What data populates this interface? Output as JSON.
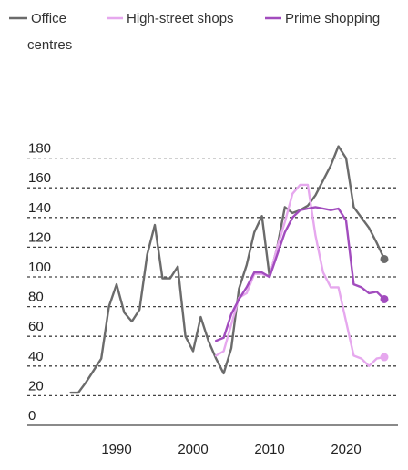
{
  "chart_data": {
    "type": "line",
    "title": "",
    "xlabel": "",
    "ylabel": "",
    "xlim": [
      1978,
      2028
    ],
    "ylim": [
      0,
      190
    ],
    "grid": true,
    "legend_position": "top-left",
    "x_ticks": [
      1990,
      2000,
      2010,
      2020
    ],
    "y_ticks": [
      0,
      20,
      40,
      60,
      80,
      100,
      120,
      140,
      160,
      180
    ],
    "series": [
      {
        "name": "Office",
        "color": "#6b6b6b",
        "end_marker": true,
        "points": [
          [
            1984,
            22
          ],
          [
            1985,
            22
          ],
          [
            1986,
            29
          ],
          [
            1987,
            37
          ],
          [
            1988,
            45
          ],
          [
            1989,
            80
          ],
          [
            1990,
            95
          ],
          [
            1991,
            76
          ],
          [
            1992,
            70
          ],
          [
            1993,
            78
          ],
          [
            1994,
            115
          ],
          [
            1995,
            135
          ],
          [
            1996,
            99
          ],
          [
            1997,
            99
          ],
          [
            1998,
            107
          ],
          [
            1999,
            60
          ],
          [
            2000,
            50
          ],
          [
            2001,
            73
          ],
          [
            2002,
            57
          ],
          [
            2003,
            45
          ],
          [
            2004,
            35
          ],
          [
            2005,
            52
          ],
          [
            2006,
            92
          ],
          [
            2007,
            108
          ],
          [
            2008,
            130
          ],
          [
            2009,
            141
          ],
          [
            2010,
            100
          ],
          [
            2011,
            120
          ],
          [
            2012,
            147
          ],
          [
            2013,
            143
          ],
          [
            2014,
            145
          ],
          [
            2015,
            148
          ],
          [
            2016,
            155
          ],
          [
            2017,
            165
          ],
          [
            2018,
            175
          ],
          [
            2019,
            188
          ],
          [
            2020,
            180
          ],
          [
            2021,
            147
          ],
          [
            2022,
            140
          ],
          [
            2023,
            133
          ],
          [
            2024,
            123
          ],
          [
            2025,
            112
          ]
        ]
      },
      {
        "name": "High-street shops",
        "color": "#e6a8ee",
        "end_marker": true,
        "points": [
          [
            2003,
            47
          ],
          [
            2004,
            50
          ],
          [
            2005,
            68
          ],
          [
            2006,
            86
          ],
          [
            2007,
            89
          ],
          [
            2008,
            102
          ],
          [
            2009,
            102
          ],
          [
            2010,
            100
          ],
          [
            2011,
            120
          ],
          [
            2012,
            137
          ],
          [
            2013,
            156
          ],
          [
            2014,
            162
          ],
          [
            2015,
            162
          ],
          [
            2016,
            128
          ],
          [
            2017,
            103
          ],
          [
            2018,
            93
          ],
          [
            2019,
            93
          ],
          [
            2020,
            70
          ],
          [
            2021,
            47
          ],
          [
            2022,
            45
          ],
          [
            2023,
            40
          ],
          [
            2024,
            45
          ],
          [
            2025,
            46
          ]
        ]
      },
      {
        "name": "Prime shopping centres",
        "color": "#a24cbe",
        "end_marker": true,
        "points": [
          [
            2003,
            57
          ],
          [
            2004,
            59
          ],
          [
            2005,
            75
          ],
          [
            2006,
            85
          ],
          [
            2007,
            93
          ],
          [
            2008,
            103
          ],
          [
            2009,
            103
          ],
          [
            2010,
            100
          ],
          [
            2011,
            115
          ],
          [
            2012,
            130
          ],
          [
            2013,
            140
          ],
          [
            2014,
            145
          ],
          [
            2015,
            146
          ],
          [
            2016,
            147
          ],
          [
            2017,
            146
          ],
          [
            2018,
            145
          ],
          [
            2019,
            146
          ],
          [
            2020,
            138
          ],
          [
            2021,
            95
          ],
          [
            2022,
            93
          ],
          [
            2023,
            89
          ],
          [
            2024,
            90
          ],
          [
            2025,
            85
          ]
        ]
      }
    ]
  },
  "legend": [
    {
      "label": "Office",
      "color": "#6b6b6b"
    },
    {
      "label": "High-street shops",
      "color": "#e6a8ee"
    },
    {
      "label": "Prime shopping",
      "color": "#a24cbe"
    }
  ],
  "legend_wrap": "centres"
}
